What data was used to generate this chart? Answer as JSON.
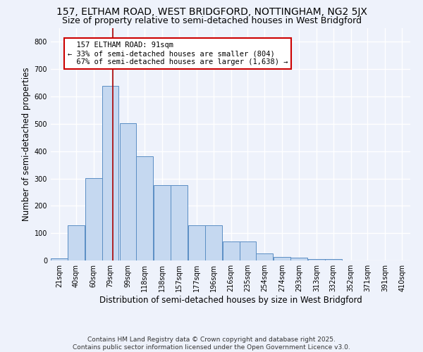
{
  "title": "157, ELTHAM ROAD, WEST BRIDGFORD, NOTTINGHAM, NG2 5JX",
  "subtitle": "Size of property relative to semi-detached houses in West Bridgford",
  "xlabel": "Distribution of semi-detached houses by size in West Bridgford",
  "ylabel": "Number of semi-detached properties",
  "bar_color": "#c5d8f0",
  "bar_edge_color": "#5b8ec4",
  "bin_starts": [
    21,
    40,
    60,
    79,
    99,
    118,
    138,
    157,
    177,
    196,
    216,
    235,
    254,
    274,
    293,
    313,
    332,
    352,
    371,
    391
  ],
  "bin_labels": [
    "21sqm",
    "40sqm",
    "60sqm",
    "79sqm",
    "99sqm",
    "118sqm",
    "138sqm",
    "157sqm",
    "177sqm",
    "196sqm",
    "216sqm",
    "235sqm",
    "254sqm",
    "274sqm",
    "293sqm",
    "313sqm",
    "332sqm",
    "352sqm",
    "371sqm",
    "391sqm",
    "410sqm"
  ],
  "bar_heights": [
    8,
    128,
    302,
    638,
    502,
    382,
    275,
    275,
    130,
    130,
    70,
    70,
    27,
    12,
    10,
    6,
    6,
    0,
    0,
    0
  ],
  "bin_width": 19,
  "property_size": 91,
  "property_label": "157 ELTHAM ROAD: 91sqm",
  "pct_smaller": 33,
  "pct_larger": 67,
  "n_smaller": 804,
  "n_larger": 1638,
  "vline_color": "#aa0000",
  "annotation_box_color": "#cc0000",
  "ylim": [
    0,
    850
  ],
  "yticks": [
    0,
    100,
    200,
    300,
    400,
    500,
    600,
    700,
    800
  ],
  "background_color": "#eef2fb",
  "grid_color": "#ffffff",
  "footer": "Contains HM Land Registry data © Crown copyright and database right 2025.\nContains public sector information licensed under the Open Government Licence v3.0.",
  "title_fontsize": 10,
  "subtitle_fontsize": 9,
  "axis_label_fontsize": 8.5,
  "tick_fontsize": 7,
  "footer_fontsize": 6.5,
  "annotation_fontsize": 7.5
}
